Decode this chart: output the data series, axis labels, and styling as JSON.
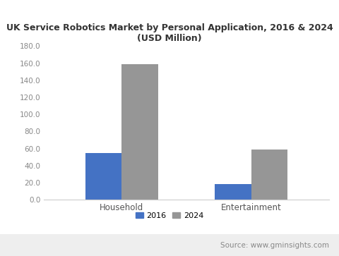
{
  "title": "UK Service Robotics Market by Personal Application, 2016 & 2024\n(USD Million)",
  "categories": [
    "Household",
    "Entertainment"
  ],
  "values_2016": [
    55.0,
    18.0
  ],
  "values_2024": [
    159.0,
    59.0
  ],
  "color_2016": "#4472C4",
  "color_2024": "#969696",
  "ylim": [
    0,
    180.0
  ],
  "yticks": [
    0.0,
    20.0,
    40.0,
    60.0,
    80.0,
    100.0,
    120.0,
    140.0,
    160.0,
    180.0
  ],
  "legend_labels": [
    "2016",
    "2024"
  ],
  "source_text": "Source: www.gminsights.com",
  "background_color": "#ffffff",
  "footer_bg_color": "#eeeeee",
  "title_color": "#333333",
  "bar_width": 0.28
}
